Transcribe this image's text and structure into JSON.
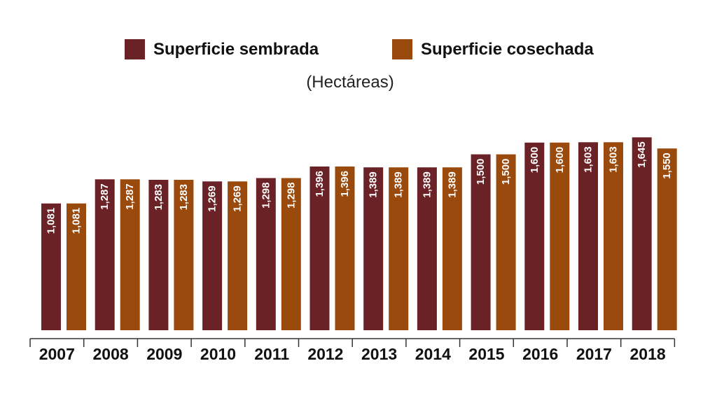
{
  "legend": {
    "sown_label": "Superficie sembrada",
    "harvested_label": "Superficie cosechada"
  },
  "unit_label": "(Hectáreas)",
  "colors": {
    "sown": "#6b2226",
    "harvested": "#9a4a0c"
  },
  "chart_data": {
    "type": "bar",
    "categories": [
      "2007",
      "2008",
      "2009",
      "2010",
      "2011",
      "2012",
      "2013",
      "2014",
      "2015",
      "2016",
      "2017",
      "2018"
    ],
    "series": [
      {
        "name": "Superficie sembrada",
        "values": [
          1081,
          1287,
          1283,
          1269,
          1298,
          1396,
          1389,
          1389,
          1500,
          1600,
          1603,
          1645
        ],
        "labels": [
          "1,081",
          "1,287",
          "1,283",
          "1,269",
          "1,298",
          "1,396",
          "1,389",
          "1,389",
          "1,500",
          "1,600",
          "1,603",
          "1,645"
        ]
      },
      {
        "name": "Superficie cosechada",
        "values": [
          1081,
          1287,
          1283,
          1269,
          1298,
          1396,
          1389,
          1389,
          1500,
          1600,
          1603,
          1550
        ],
        "labels": [
          "1,081",
          "1,287",
          "1,283",
          "1,269",
          "1,298",
          "1,396",
          "1,389",
          "1,389",
          "1,500",
          "1,600",
          "1,603",
          "1,550"
        ]
      }
    ],
    "ylim": [
      0,
      1700
    ],
    "grid": false,
    "legend_position": "top-center"
  }
}
